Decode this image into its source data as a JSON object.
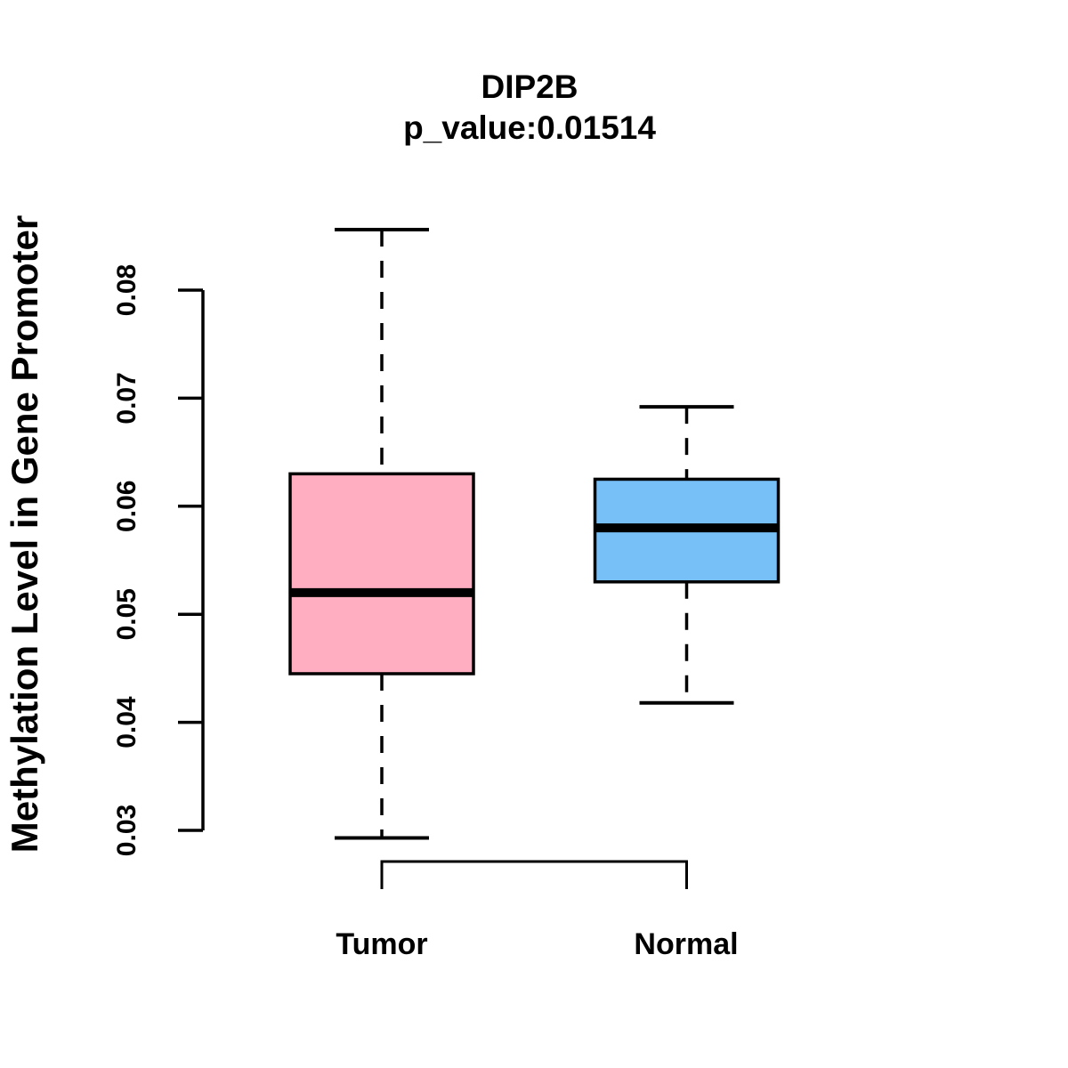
{
  "chart_data": {
    "type": "boxplot",
    "title": "DIP2B",
    "subtitle": "p_value:0.01514",
    "ylabel": "Methylation Level in Gene Promoter",
    "xlabel": "",
    "categories": [
      "Tumor",
      "Normal"
    ],
    "series": [
      {
        "name": "Tumor",
        "color": "#FFAEC1",
        "whisker_low": 0.0293,
        "q1": 0.0445,
        "median": 0.052,
        "q3": 0.063,
        "whisker_high": 0.0856,
        "outliers": []
      },
      {
        "name": "Normal",
        "color": "#76BFF7",
        "whisker_low": 0.0418,
        "q1": 0.053,
        "median": 0.058,
        "q3": 0.0625,
        "whisker_high": 0.0692,
        "outliers": []
      }
    ],
    "y_ticks": [
      0.03,
      0.04,
      0.05,
      0.06,
      0.07,
      0.08
    ],
    "y_tick_labels": [
      "0.03",
      "0.04",
      "0.05",
      "0.06",
      "0.07",
      "0.08"
    ],
    "ylim": [
      0.0293,
      0.0856
    ],
    "grid": false,
    "legend_position": "none",
    "stroke_color": "#000000",
    "background_color": "#FFFFFF"
  }
}
